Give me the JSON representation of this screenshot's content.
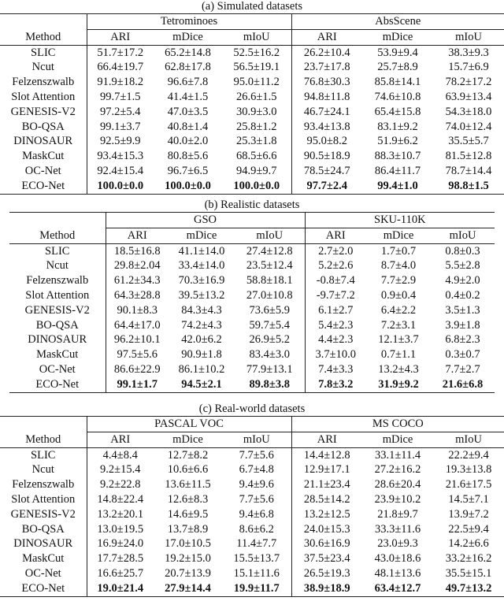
{
  "tables": [
    {
      "caption": "(a) Simulated datasets",
      "method_header": "Method",
      "groups": [
        "Tetrominoes",
        "AbsScene"
      ],
      "metrics": [
        "ARI",
        "mDice",
        "mIoU",
        "ARI",
        "mDice",
        "mIoU"
      ],
      "rows": [
        {
          "method": "SLIC",
          "values": [
            "51.7±17.2",
            "65.2±14.8",
            "52.5±16.2",
            "26.2±10.4",
            "53.9±9.4",
            "38.3±9.3"
          ]
        },
        {
          "method": "Ncut",
          "values": [
            "66.4±19.7",
            "62.8±17.8",
            "56.5±19.1",
            "23.7±17.8",
            "25.7±8.9",
            "15.7±6.9"
          ]
        },
        {
          "method": "Felzenszwalb",
          "values": [
            "91.9±18.2",
            "96.6±7.8",
            "95.0±11.2",
            "76.8±30.3",
            "85.8±14.1",
            "78.2±17.2"
          ]
        },
        {
          "method": "Slot Attention",
          "values": [
            "99.7±1.5",
            "41.4±1.5",
            "26.6±1.5",
            "94.8±11.8",
            "74.6±10.8",
            "63.9±13.4"
          ]
        },
        {
          "method": "GENESIS-V2",
          "values": [
            "97.2±5.4",
            "47.0±3.5",
            "30.9±3.0",
            "46.7±24.1",
            "65.4±15.8",
            "54.3±18.0"
          ]
        },
        {
          "method": "BO-QSA",
          "values": [
            "99.1±3.7",
            "40.8±1.4",
            "25.8±1.2",
            "93.4±13.8",
            "83.1±9.2",
            "74.0±12.4"
          ]
        },
        {
          "method": "DINOSAUR",
          "values": [
            "92.5±9.9",
            "40.0±2.0",
            "25.3±1.8",
            "95.0±8.2",
            "51.9±6.2",
            "35.5±5.7"
          ]
        },
        {
          "method": "MaskCut",
          "values": [
            "93.4±15.3",
            "80.8±5.6",
            "68.5±6.6",
            "90.5±18.9",
            "88.3±10.7",
            "81.5±12.8"
          ]
        },
        {
          "method": "OC-Net",
          "values": [
            "92.4±15.4",
            "96.7±6.5",
            "94.9±9.7",
            "78.5±24.7",
            "86.4±11.7",
            "78.7±14.4"
          ]
        },
        {
          "method": "ECO-Net",
          "values": [
            "100.0±0.0",
            "100.0±0.0",
            "100.0±0.0",
            "97.7±2.4",
            "99.4±1.0",
            "98.8±1.5"
          ],
          "bold": true
        }
      ]
    },
    {
      "caption": "(b) Realistic datasets",
      "method_header": "Method",
      "groups": [
        "GSO",
        "SKU-110K"
      ],
      "metrics": [
        "ARI",
        "mDice",
        "mIoU",
        "ARI",
        "mDice",
        "mIoU"
      ],
      "rows": [
        {
          "method": "SLIC",
          "values": [
            "18.5±16.8",
            "41.1±14.0",
            "27.4±12.8",
            "2.7±2.0",
            "1.7±0.7",
            "0.8±0.3"
          ]
        },
        {
          "method": "Ncut",
          "values": [
            "29.8±2.04",
            "33.4±14.0",
            "23.5±12.4",
            "5.2±2.6",
            "8.7±4.0",
            "5.5±2.8"
          ]
        },
        {
          "method": "Felzenszwalb",
          "values": [
            "61.2±34.3",
            "70.3±16.9",
            "58.8±18.1",
            "-0.8±7.4",
            "7.7±2.9",
            "4.9±2.0"
          ]
        },
        {
          "method": "Slot Attention",
          "values": [
            "64.3±28.8",
            "39.5±13.2",
            "27.0±10.8",
            "-9.7±7.2",
            "0.9±0.4",
            "0.4±0.2"
          ]
        },
        {
          "method": "GENESIS-V2",
          "values": [
            "90.1±8.3",
            "84.3±4.3",
            "73.6±5.9",
            "6.1±2.7",
            "6.4±2.2",
            "3.5±1.3"
          ]
        },
        {
          "method": "BO-QSA",
          "values": [
            "64.4±17.0",
            "74.2±4.3",
            "59.7±5.4",
            "5.4±2.3",
            "7.2±3.1",
            "3.9±1.8"
          ]
        },
        {
          "method": "DINOSAUR",
          "values": [
            "96.2±10.1",
            "42.0±6.2",
            "26.9±5.2",
            "4.4±2.3",
            "12.1±3.7",
            "6.8±2.3"
          ]
        },
        {
          "method": "MaskCut",
          "values": [
            "97.5±5.6",
            "90.9±1.8",
            "83.4±3.0",
            "3.7±10.0",
            "0.7±1.1",
            "0.3±0.7"
          ]
        },
        {
          "method": "OC-Net",
          "values": [
            "86.6±22.9",
            "86.1±10.2",
            "77.9±13.1",
            "7.4±3.3",
            "13.2±4.3",
            "7.7±2.7"
          ]
        },
        {
          "method": "ECO-Net",
          "values": [
            "99.1±1.7",
            "94.5±2.1",
            "89.8±3.8",
            "7.8±3.2",
            "31.9±9.2",
            "21.6±6.8"
          ],
          "bold": true
        }
      ]
    },
    {
      "caption": "(c) Real-world datasets",
      "method_header": "Method",
      "groups": [
        "PASCAL VOC",
        "MS COCO"
      ],
      "metrics": [
        "ARI",
        "mDice",
        "mIoU",
        "ARI",
        "mDice",
        "mIoU"
      ],
      "rows": [
        {
          "method": "SLIC",
          "values": [
            "4.4±8.4",
            "12.7±8.2",
            "7.7±5.6",
            "14.4±12.8",
            "33.1±11.4",
            "22.2±9.4"
          ]
        },
        {
          "method": "Ncut",
          "values": [
            "9.2±15.4",
            "10.6±6.6",
            "6.7±4.8",
            "12.9±17.1",
            "27.2±16.2",
            "19.3±13.8"
          ]
        },
        {
          "method": "Felzenszwalb",
          "values": [
            "9.2±22.8",
            "13.6±11.5",
            "9.4±9.6",
            "21.1±23.4",
            "28.6±20.4",
            "21.6±17.5"
          ]
        },
        {
          "method": "Slot Attention",
          "values": [
            "14.8±22.4",
            "12.6±8.3",
            "7.7±5.6",
            "28.5±14.2",
            "23.9±10.2",
            "14.5±7.1"
          ]
        },
        {
          "method": "GENESIS-V2",
          "values": [
            "13.2±20.1",
            "14.6±9.5",
            "9.4±6.8",
            "13.2±12.5",
            "21.8±9.7",
            "13.9±7.2"
          ]
        },
        {
          "method": "BO-QSA",
          "values": [
            "13.0±19.5",
            "13.7±8.9",
            "8.6±6.2",
            "24.0±15.3",
            "33.3±11.6",
            "22.5±9.4"
          ]
        },
        {
          "method": "DINOSAUR",
          "values": [
            "16.9±24.0",
            "17.0±10.5",
            "11.4±7.7",
            "30.6±16.9",
            "23.0±9.3",
            "14.2±6.6"
          ]
        },
        {
          "method": "MaskCut",
          "values": [
            "17.7±28.5",
            "19.2±15.0",
            "15.5±13.7",
            "37.5±23.4",
            "43.0±18.6",
            "33.2±16.2"
          ]
        },
        {
          "method": "OC-Net",
          "values": [
            "16.6±25.7",
            "20.7±13.9",
            "15.1±11.6",
            "26.5±19.3",
            "48.1±13.6",
            "35.5±15.1"
          ]
        },
        {
          "method": "ECO-Net",
          "values": [
            "19.0±21.4",
            "27.9±14.4",
            "19.9±11.7",
            "38.9±18.9",
            "63.4±12.7",
            "49.7±13.2"
          ],
          "bold": true
        }
      ]
    }
  ]
}
